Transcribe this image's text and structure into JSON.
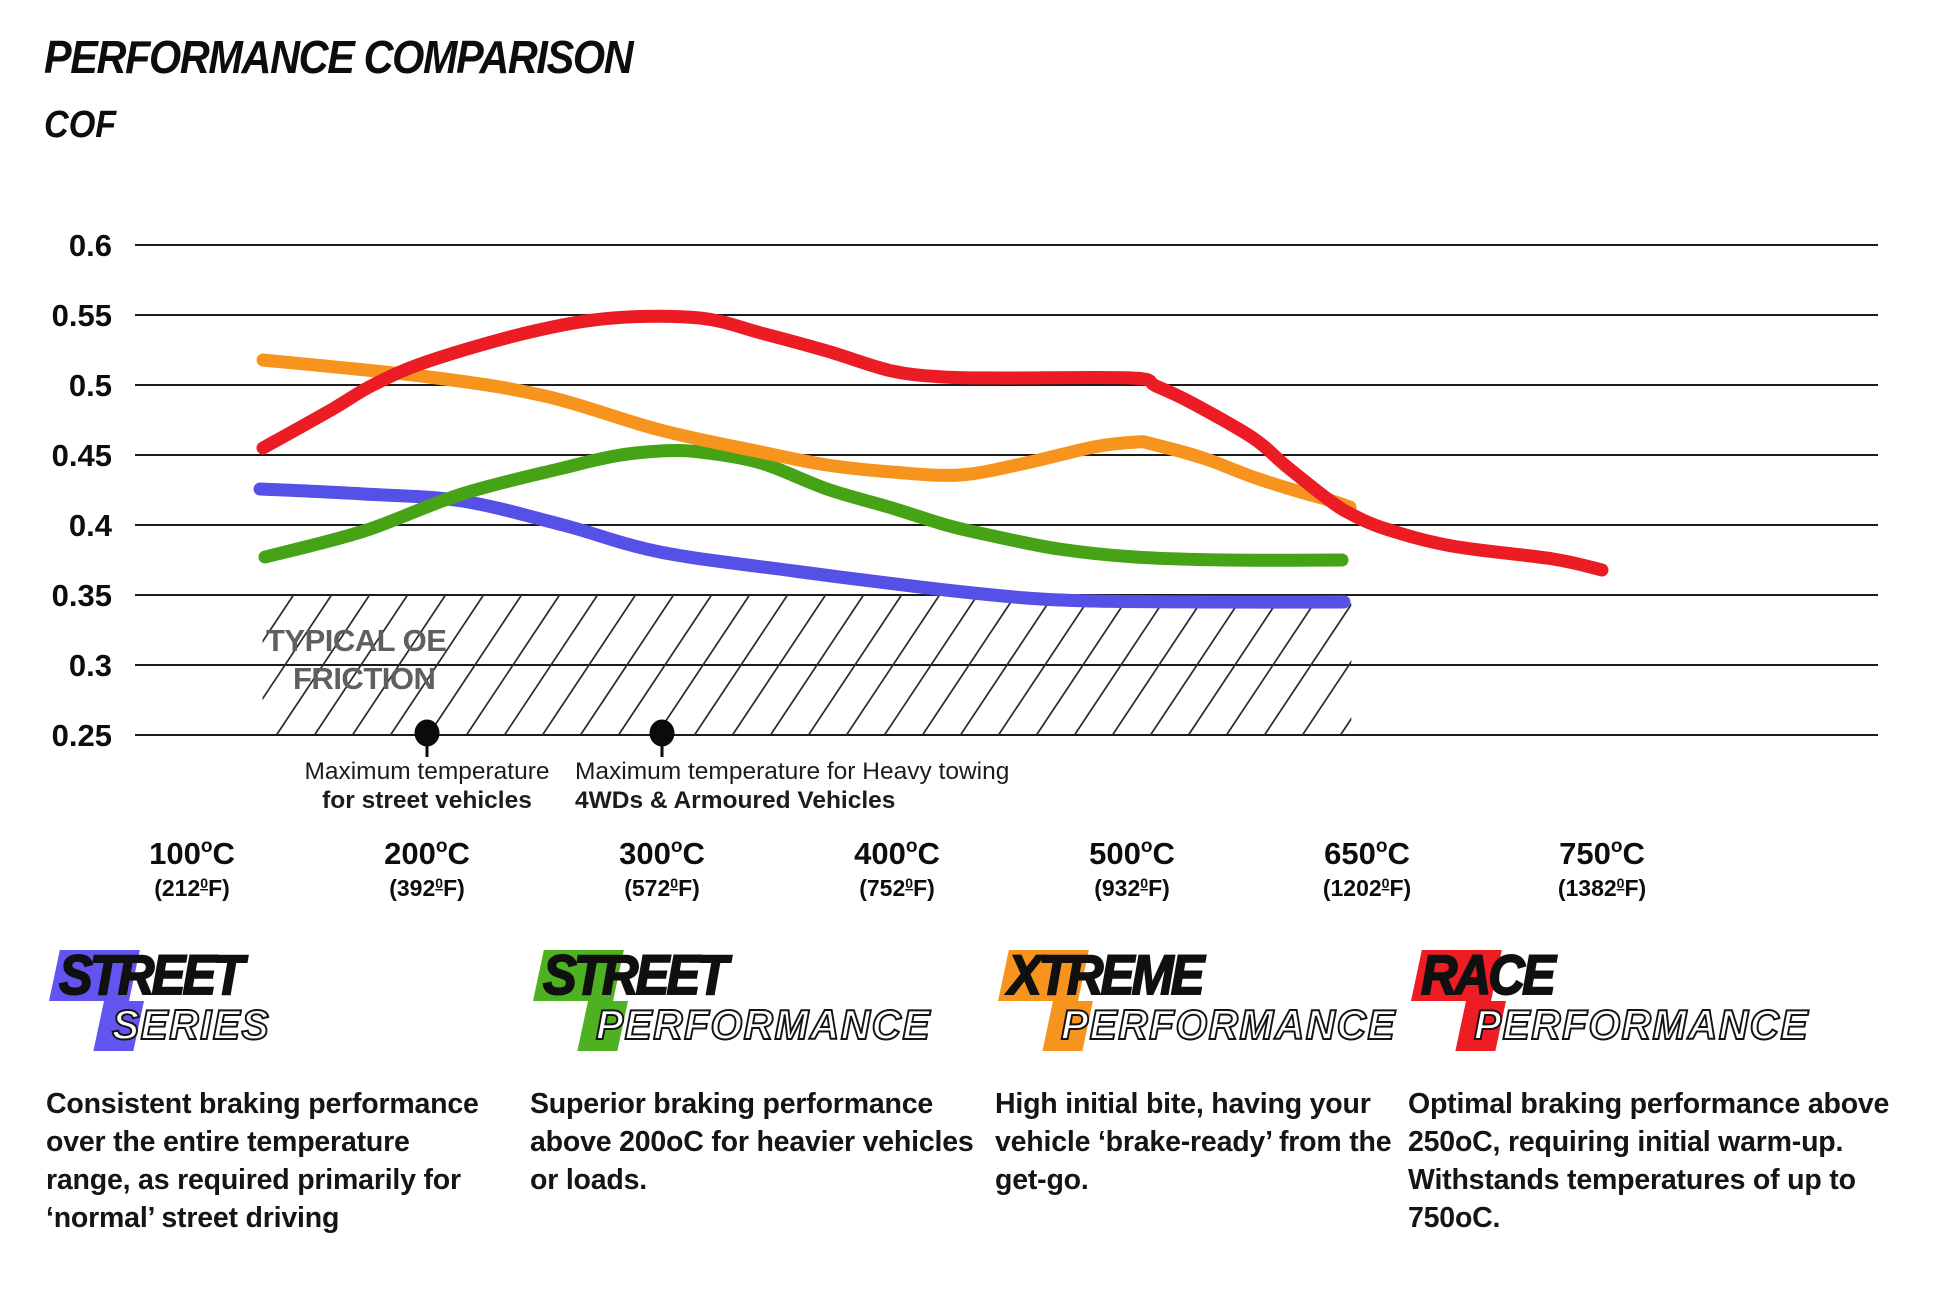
{
  "title": "PERFORMANCE COMPARISON",
  "y_axis_label": "COF",
  "chart_data": {
    "type": "line",
    "title": "PERFORMANCE COMPARISON",
    "ylabel": "COF",
    "grid": true,
    "ylim": [
      0.25,
      0.6
    ],
    "y_ticks": [
      "0.6",
      "0.55",
      "0.5",
      "0.45",
      "0.4",
      "0.35",
      "0.3",
      "0.25"
    ],
    "x_ticks": [
      {
        "t": 100,
        "c": "100",
        "f": "212"
      },
      {
        "t": 200,
        "c": "200",
        "f": "392"
      },
      {
        "t": 300,
        "c": "300",
        "f": "572"
      },
      {
        "t": 400,
        "c": "400",
        "f": "752"
      },
      {
        "t": 500,
        "c": "500",
        "f": "932"
      },
      {
        "t": 650,
        "c": "650",
        "f": "1202"
      },
      {
        "t": 750,
        "c": "750",
        "f": "1382"
      }
    ],
    "units": {
      "c_sup": "o",
      "c_unit": "C",
      "f_sup": "0",
      "f_unit": "F",
      "f_open": "(",
      "f_close": ")"
    },
    "series": [
      {
        "name": "street-series",
        "label": "Street Series",
        "color": "#5551e6",
        "points": [
          [
            129,
            0.426
          ],
          [
            173,
            0.422
          ],
          [
            215,
            0.417
          ],
          [
            258,
            0.4
          ],
          [
            299,
            0.381
          ],
          [
            356,
            0.367
          ],
          [
            413,
            0.355
          ],
          [
            455,
            0.348
          ],
          [
            484,
            0.346
          ],
          [
            545,
            0.345
          ],
          [
            635,
            0.345
          ]
        ]
      },
      {
        "name": "street-performance",
        "label": "Street Performance",
        "color": "#45a315",
        "points": [
          [
            131,
            0.377
          ],
          [
            173,
            0.396
          ],
          [
            215,
            0.422
          ],
          [
            258,
            0.441
          ],
          [
            280,
            0.449
          ],
          [
            299,
            0.453
          ],
          [
            316,
            0.452
          ],
          [
            342,
            0.444
          ],
          [
            370,
            0.426
          ],
          [
            398,
            0.412
          ],
          [
            421,
            0.4
          ],
          [
            441,
            0.392
          ],
          [
            469,
            0.383
          ],
          [
            502,
            0.377
          ],
          [
            560,
            0.375
          ],
          [
            634,
            0.375
          ]
        ]
      },
      {
        "name": "xtreme-performance",
        "label": "Xtreme Performance",
        "color": "#f7941e",
        "points": [
          [
            130,
            0.518
          ],
          [
            201,
            0.506
          ],
          [
            250,
            0.492
          ],
          [
            299,
            0.468
          ],
          [
            342,
            0.452
          ],
          [
            370,
            0.443
          ],
          [
            398,
            0.438
          ],
          [
            427,
            0.436
          ],
          [
            455,
            0.444
          ],
          [
            484,
            0.456
          ],
          [
            503,
            0.459
          ],
          [
            513,
            0.458
          ],
          [
            545,
            0.448
          ],
          [
            577,
            0.434
          ],
          [
            605,
            0.424
          ],
          [
            626,
            0.418
          ],
          [
            639,
            0.413
          ]
        ]
      },
      {
        "name": "race-performance",
        "label": "Race Performance",
        "color": "#ec1c24",
        "points": [
          [
            130,
            0.455
          ],
          [
            159,
            0.482
          ],
          [
            177,
            0.5
          ],
          [
            201,
            0.517
          ],
          [
            244,
            0.538
          ],
          [
            279,
            0.548
          ],
          [
            316,
            0.548
          ],
          [
            342,
            0.537
          ],
          [
            370,
            0.524
          ],
          [
            398,
            0.51
          ],
          [
            420,
            0.506
          ],
          [
            444,
            0.505
          ],
          [
            500,
            0.505
          ],
          [
            515,
            0.499
          ],
          [
            538,
            0.487
          ],
          [
            577,
            0.462
          ],
          [
            598,
            0.442
          ],
          [
            626,
            0.418
          ],
          [
            640,
            0.408
          ],
          [
            658,
            0.397
          ],
          [
            686,
            0.385
          ],
          [
            729,
            0.376
          ],
          [
            750,
            0.368
          ]
        ]
      }
    ],
    "oe_band": {
      "label_lines": [
        "TYPICAL OE",
        "FRICTION"
      ],
      "cof_min": 0.25,
      "cof_max": 0.35,
      "temp_min": 130,
      "temp_max": 640,
      "label_color": "#5f5f5f"
    },
    "annotations": [
      {
        "temp_c": 200,
        "align": "center",
        "lines": [
          "Maximum temperature",
          "for street vehicles"
        ]
      },
      {
        "temp_c": 300,
        "align": "left",
        "text_x": 575,
        "lines": [
          "Maximum temperature for Heavy towing",
          "4WDs & Armoured Vehicles"
        ]
      }
    ]
  },
  "legend": [
    {
      "line1": "STREET",
      "line2": "SERIES",
      "color": "#6254ef",
      "description": "Consistent braking performance over the entire temperature range, as required primarily for ‘normal’ street driving"
    },
    {
      "line1": "STREET",
      "line2": "PERFORMANCE",
      "color": "#4db122",
      "description": "Superior braking performance above 200oC for heavier vehicles or loads."
    },
    {
      "line1": "XTREME",
      "line2": "PERFORMANCE",
      "color": "#f7941e",
      "description": "High initial bite, having your vehicle ‘brake-ready’ from the get-go."
    },
    {
      "line1": "RACE",
      "line2": "PERFORMANCE",
      "color": "#ee1c23",
      "description": "Optimal braking performance above 250oC, requiring initial warm-up. Withstands temperatures of up to 750oC."
    }
  ]
}
